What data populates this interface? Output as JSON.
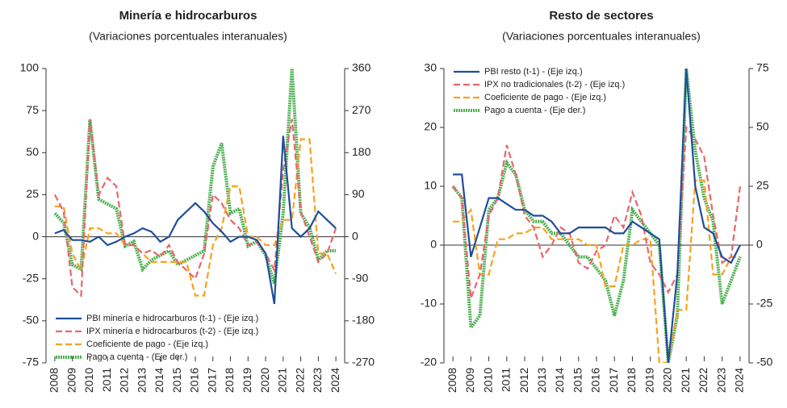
{
  "chart_data": [
    {
      "type": "line",
      "title": "Minería e hidrocarburos",
      "subtitle": "(Variaciones porcentuales interanuales)",
      "x": [
        2008,
        2008.5,
        2009,
        2009.5,
        2010,
        2010.5,
        2011,
        2011.5,
        2012,
        2012.5,
        2013,
        2013.5,
        2014,
        2014.5,
        2015,
        2015.5,
        2016,
        2016.5,
        2017,
        2017.5,
        2018,
        2018.5,
        2019,
        2019.5,
        2020,
        2020.5,
        2021,
        2021.5,
        2022,
        2022.5,
        2023,
        2023.5,
        2024
      ],
      "xlim": [
        2007.5,
        2024.5
      ],
      "xticks": [
        2008,
        2009,
        2010,
        2011,
        2012,
        2013,
        2014,
        2015,
        2016,
        2017,
        2018,
        2019,
        2020,
        2021,
        2022,
        2023,
        2024
      ],
      "ylim": [
        -75,
        100
      ],
      "yticks": [
        -75,
        -50,
        -25,
        0,
        25,
        50,
        75,
        100
      ],
      "y2lim": [
        -270,
        360
      ],
      "y2ticks": [
        -270,
        -180,
        -90,
        0,
        90,
        180,
        270,
        360
      ],
      "legend": "lower left",
      "series": [
        {
          "name": "PBI minería e hidrocarburos (t-1) - (Eje izq.)",
          "color": "#1f4e9c",
          "style": "solid",
          "values": [
            2,
            4,
            -2,
            -2,
            -3,
            0,
            -5,
            -3,
            0,
            2,
            5,
            3,
            -3,
            0,
            10,
            15,
            20,
            15,
            8,
            3,
            -3,
            0,
            0,
            -2,
            -10,
            -40,
            60,
            5,
            0,
            5,
            15,
            10,
            5
          ]
        },
        {
          "name": "IPX minería e hidrocarburos (t-2) - (Eje izq.)",
          "color": "#e8666b",
          "style": "dashed",
          "values": [
            25,
            15,
            -30,
            -35,
            70,
            25,
            35,
            30,
            -5,
            -5,
            -10,
            -8,
            -12,
            -5,
            -15,
            -20,
            -25,
            -10,
            25,
            20,
            10,
            5,
            -5,
            -3,
            -10,
            -20,
            40,
            70,
            15,
            0,
            -15,
            -10,
            5
          ]
        },
        {
          "name": "Coeficiente de pago - (Eje izq.)",
          "color": "#f7a21b",
          "style": "dashed",
          "values": [
            18,
            18,
            -10,
            -20,
            5,
            5,
            2,
            2,
            -5,
            -5,
            -10,
            -15,
            -15,
            -15,
            -15,
            -15,
            -35,
            -35,
            -5,
            5,
            30,
            30,
            0,
            0,
            -5,
            -5,
            10,
            10,
            58,
            58,
            -10,
            -10,
            -22
          ]
        },
        {
          "name": "Pago a cuenta - (Eje der.)",
          "color": "#4caf50",
          "style": "dotted",
          "axis": "y2",
          "values": [
            50,
            30,
            -60,
            -70,
            250,
            80,
            70,
            60,
            -20,
            -10,
            -70,
            -50,
            -40,
            -30,
            -60,
            -50,
            -40,
            -30,
            150,
            200,
            50,
            60,
            -20,
            -10,
            -40,
            -100,
            50,
            360,
            50,
            20,
            -50,
            -30,
            -30
          ]
        }
      ]
    },
    {
      "type": "line",
      "title": "Resto de sectores",
      "subtitle": "(Variaciones porcentuales interanuales)",
      "x": [
        2008,
        2008.5,
        2009,
        2009.5,
        2010,
        2010.5,
        2011,
        2011.5,
        2012,
        2012.5,
        2013,
        2013.5,
        2014,
        2014.5,
        2015,
        2015.5,
        2016,
        2016.5,
        2017,
        2017.5,
        2018,
        2018.5,
        2019,
        2019.5,
        2020,
        2020.5,
        2021,
        2021.5,
        2022,
        2022.5,
        2023,
        2023.5,
        2024
      ],
      "xlim": [
        2007.5,
        2024.5
      ],
      "xticks": [
        2008,
        2009,
        2010,
        2011,
        2012,
        2013,
        2014,
        2015,
        2016,
        2017,
        2018,
        2019,
        2020,
        2021,
        2022,
        2023,
        2024
      ],
      "ylim": [
        -20,
        30
      ],
      "yticks": [
        -20,
        -10,
        0,
        10,
        20,
        30
      ],
      "y2lim": [
        -50,
        75
      ],
      "y2ticks": [
        -50,
        -25,
        0,
        25,
        50,
        75
      ],
      "legend": "upper left",
      "series": [
        {
          "name": "PBI resto (t-1) - (Eje izq.)",
          "color": "#1f4e9c",
          "style": "solid",
          "values": [
            12,
            12,
            -2,
            3,
            8,
            8,
            7,
            6,
            6,
            5,
            5,
            4,
            2,
            2,
            3,
            3,
            3,
            3,
            2,
            2,
            4,
            3,
            2,
            1,
            -20,
            -5,
            30,
            10,
            3,
            2,
            -2,
            -3,
            0
          ]
        },
        {
          "name": "IPX no tradicionales (t-2) - (Eje izq.)",
          "color": "#e8666b",
          "style": "dashed",
          "values": [
            10,
            8,
            -9,
            -5,
            5,
            8,
            17,
            12,
            5,
            3,
            -2,
            0,
            3,
            2,
            -3,
            -4,
            -1,
            0,
            5,
            3,
            9,
            5,
            -3,
            -5,
            -8,
            -5,
            20,
            18,
            15,
            5,
            -3,
            -2,
            10
          ]
        },
        {
          "name": "Coeficiente de pago - (Eje izq.)",
          "color": "#f7a21b",
          "style": "dashed",
          "values": [
            4,
            4,
            6,
            -5,
            -5,
            1,
            1,
            2,
            2,
            3,
            3,
            1,
            1,
            1,
            1,
            0,
            0,
            -7,
            -7,
            0,
            0,
            1,
            1,
            -20,
            -20,
            -11,
            -11,
            11,
            11,
            -5,
            -5,
            -2,
            -2
          ]
        },
        {
          "name": "Pago a cuenta - (Eje der.)",
          "color": "#4caf50",
          "style": "dotted",
          "axis": "y2",
          "values": [
            25,
            20,
            -35,
            -30,
            15,
            20,
            35,
            30,
            15,
            10,
            10,
            5,
            5,
            0,
            -5,
            -5,
            -10,
            -15,
            -30,
            -15,
            15,
            10,
            5,
            0,
            -50,
            -30,
            75,
            40,
            20,
            10,
            -25,
            -15,
            -5
          ]
        }
      ]
    }
  ]
}
